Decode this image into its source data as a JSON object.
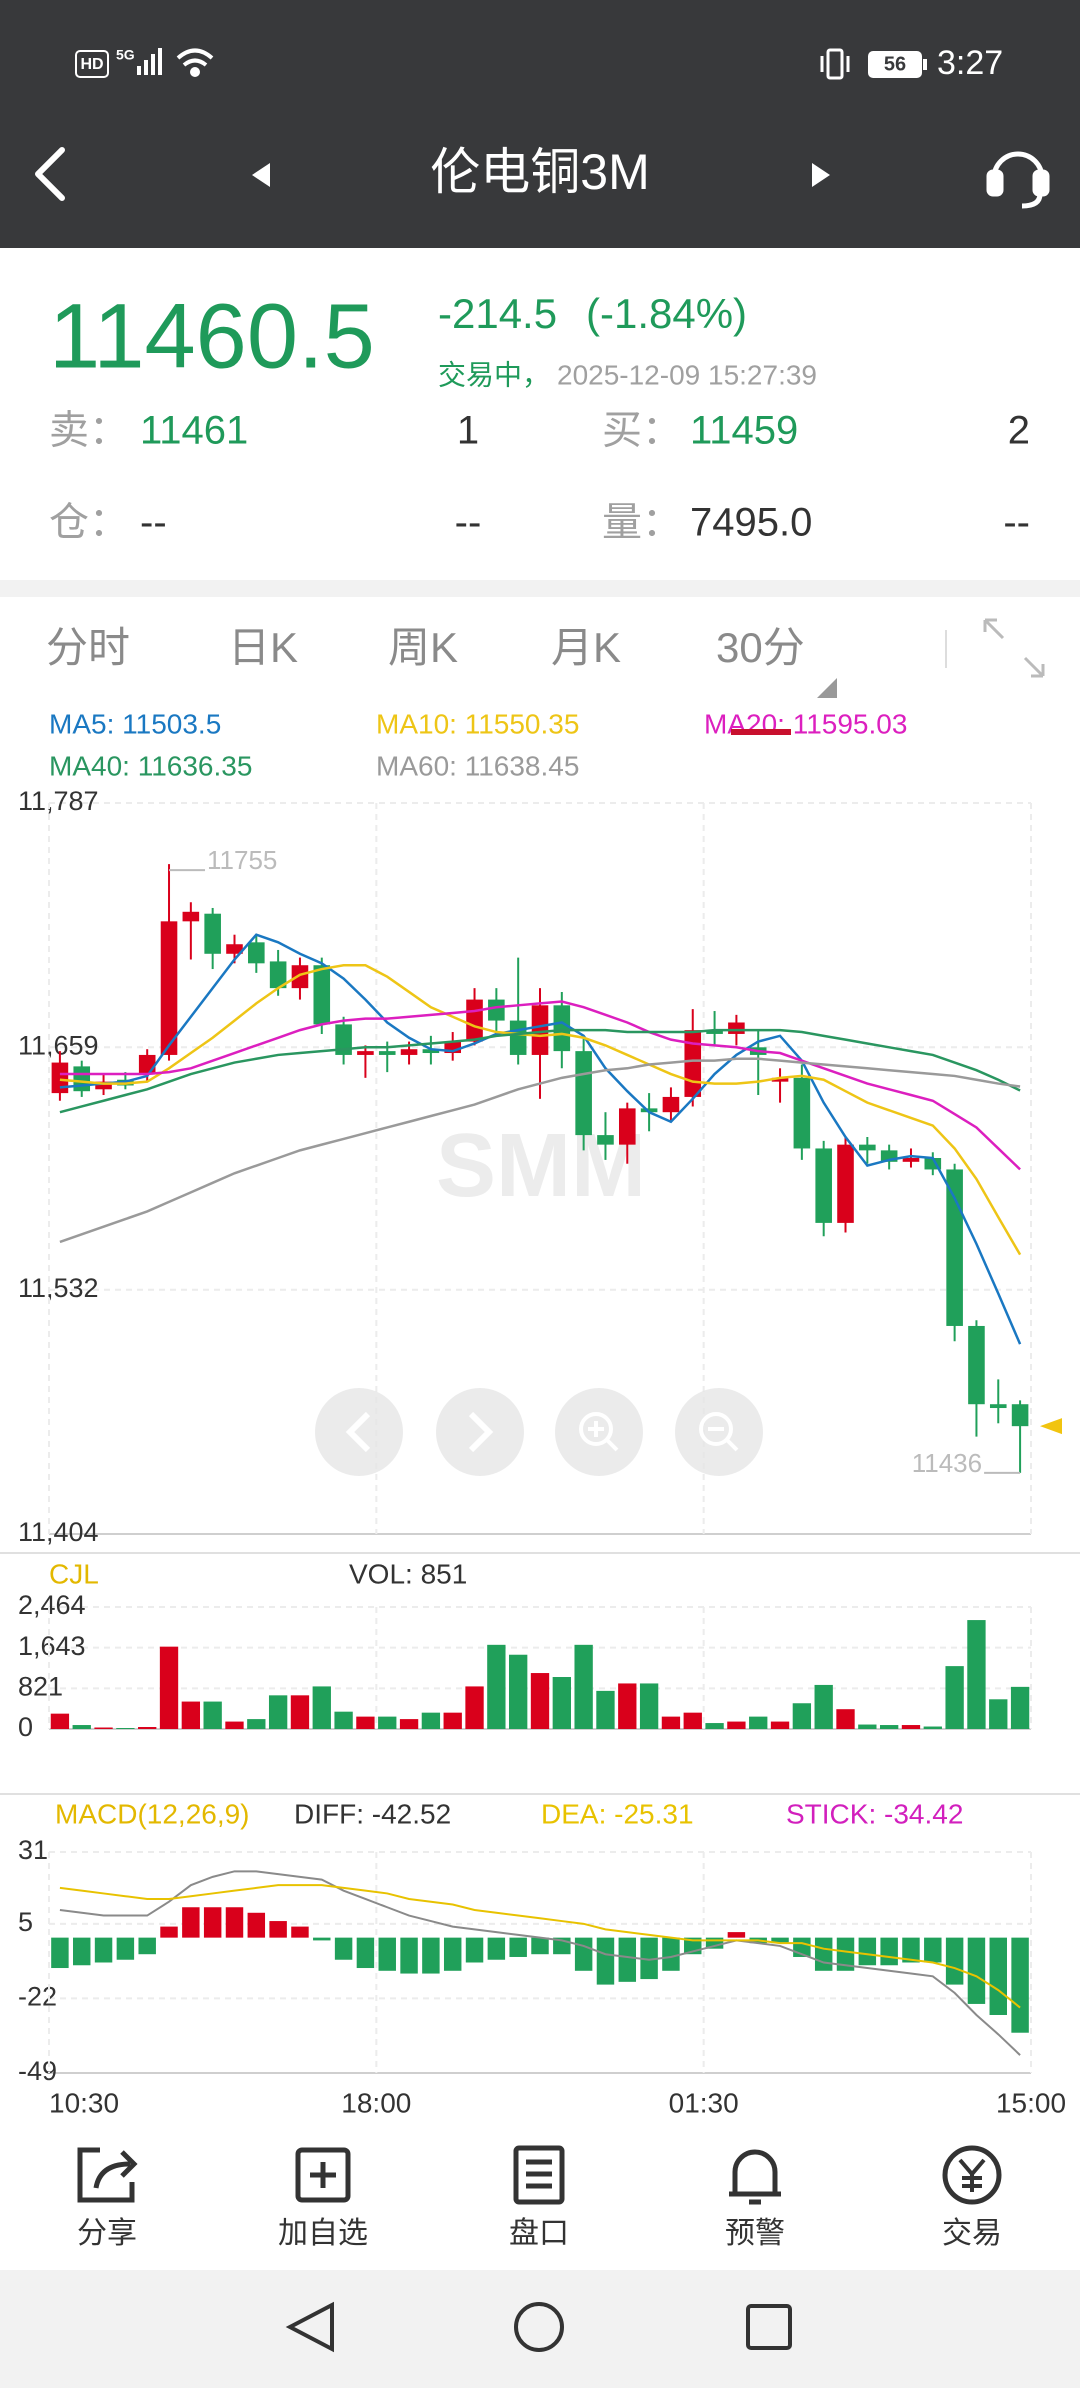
{
  "status_bar": {
    "hd": "HD",
    "network": "5G",
    "battery": "56",
    "time": "3:27"
  },
  "header": {
    "title": "伦电铜3M"
  },
  "quote": {
    "price": "11460.5",
    "change": "-214.5",
    "change_pct": "(-1.84%)",
    "status": "交易中，",
    "datetime": "2025-12-09 15:27:39",
    "sell_label": "卖：",
    "sell": "11461",
    "sell_qty": "1",
    "buy_label": "买：",
    "buy": "11459",
    "buy_qty": "2",
    "oi_label": "仓：",
    "oi": "--",
    "oi_change": "--",
    "volume_label": "量：",
    "volume": "7495.0",
    "volume_change": "--"
  },
  "tabs": [
    "分时",
    "日K",
    "周K",
    "月K",
    "30分"
  ],
  "active_tab": 4,
  "watermark": "SMM",
  "toolbar": [
    "分享",
    "加自选",
    "盘口",
    "预警",
    "交易"
  ],
  "chart_data": [
    {
      "type": "candlestick",
      "up_color": "#d9001b",
      "down_color": "#20a05a",
      "ylim": [
        11404,
        11787
      ],
      "yticks": [
        {
          "value": 11404,
          "label": "11,404"
        },
        {
          "value": 11532,
          "label": "11,532"
        },
        {
          "value": 11659,
          "label": "11,659"
        },
        {
          "value": 11787,
          "label": "11,787"
        }
      ],
      "grid": true,
      "max_label": 11755,
      "min_label": 11436,
      "open": [
        11635,
        11649,
        11637,
        11642,
        11645,
        11655,
        11725,
        11729,
        11708,
        11714,
        11704,
        11690,
        11702,
        11671,
        11655,
        11657,
        11655,
        11658,
        11656,
        11662,
        11684,
        11673,
        11655,
        11681,
        11657,
        11613,
        11608,
        11627,
        11625,
        11633,
        11668,
        11666,
        11659,
        11641,
        11643,
        11606,
        11567,
        11608,
        11605,
        11599,
        11601,
        11595,
        11513,
        11472,
        11472
      ],
      "high": [
        11657,
        11652,
        11645,
        11646,
        11658,
        11755,
        11735,
        11732,
        11718,
        11718,
        11710,
        11706,
        11706,
        11675,
        11660,
        11662,
        11662,
        11665,
        11667,
        11690,
        11690,
        11706,
        11690,
        11688,
        11665,
        11625,
        11630,
        11635,
        11638,
        11679,
        11678,
        11676,
        11668,
        11648,
        11650,
        11610,
        11612,
        11612,
        11608,
        11606,
        11604,
        11598,
        11516,
        11485,
        11474
      ],
      "low": [
        11631,
        11633,
        11634,
        11637,
        11641,
        11652,
        11705,
        11700,
        11703,
        11698,
        11686,
        11684,
        11666,
        11650,
        11643,
        11646,
        11650,
        11650,
        11652,
        11660,
        11665,
        11650,
        11632,
        11648,
        11605,
        11600,
        11598,
        11615,
        11620,
        11628,
        11660,
        11660,
        11634,
        11630,
        11600,
        11560,
        11562,
        11598,
        11595,
        11596,
        11592,
        11505,
        11455,
        11462,
        11436
      ],
      "close": [
        11651,
        11636,
        11641,
        11639,
        11655,
        11725,
        11730,
        11708,
        11713,
        11703,
        11690,
        11702,
        11671,
        11655,
        11657,
        11655,
        11658,
        11656,
        11662,
        11684,
        11673,
        11655,
        11681,
        11657,
        11613,
        11608,
        11627,
        11625,
        11633,
        11668,
        11666,
        11672,
        11655,
        11643,
        11606,
        11567,
        11608,
        11605,
        11599,
        11601,
        11595,
        11513,
        11472,
        11470,
        11460.5
      ],
      "series": [
        {
          "name": "MA5: 11503.5",
          "color": "#1a78c2",
          "values": [
            11638,
            11639,
            11640,
            11641,
            11644,
            11660,
            11675,
            11690,
            11705,
            11718,
            11714,
            11708,
            11703,
            11695,
            11684,
            11672,
            11664,
            11658,
            11657,
            11661,
            11666,
            11668,
            11670,
            11672,
            11665,
            11648,
            11636,
            11625,
            11620,
            11632,
            11645,
            11655,
            11662,
            11665,
            11652,
            11630,
            11612,
            11597,
            11600,
            11602,
            11601,
            11580,
            11556,
            11530,
            11503.5
          ]
        },
        {
          "name": "MA10: 11550.35",
          "color": "#eec516",
          "values": [
            11642,
            11641,
            11640,
            11640,
            11641,
            11648,
            11656,
            11664,
            11673,
            11682,
            11690,
            11697,
            11700,
            11702,
            11702,
            11696,
            11688,
            11680,
            11675,
            11670,
            11667,
            11666,
            11665,
            11666,
            11664,
            11660,
            11655,
            11650,
            11645,
            11641,
            11640,
            11640,
            11641,
            11643,
            11644,
            11642,
            11636,
            11630,
            11626,
            11622,
            11618,
            11606,
            11590,
            11570,
            11550.35
          ]
        },
        {
          "name": "MA20: 11595.03",
          "color": "#dc1fbf",
          "values": [
            11645,
            11645,
            11645,
            11645,
            11645,
            11646,
            11648,
            11652,
            11656,
            11660,
            11664,
            11668,
            11671,
            11673,
            11674,
            11674,
            11675,
            11676,
            11677,
            11678,
            11680,
            11681,
            11682,
            11683,
            11680,
            11676,
            11672,
            11667,
            11663,
            11661,
            11660,
            11659,
            11657,
            11656,
            11652,
            11648,
            11644,
            11640,
            11637,
            11634,
            11631,
            11624,
            11617,
            11606,
            11595.03
          ]
        },
        {
          "name": "MA40: 11636.35",
          "color": "#2a9660",
          "values": [
            11625,
            11628,
            11631,
            11634,
            11637,
            11641,
            11645,
            11648,
            11651,
            11653,
            11655,
            11656,
            11657,
            11658,
            11659,
            11659,
            11660,
            11661,
            11662,
            11663,
            11665,
            11666,
            11667,
            11668,
            11668,
            11668,
            11667,
            11667,
            11667,
            11667,
            11668,
            11668,
            11668,
            11668,
            11667,
            11665,
            11663,
            11661,
            11659,
            11657,
            11655,
            11651,
            11647,
            11642,
            11636.35
          ]
        },
        {
          "name": "MA60: 11638.45",
          "color": "#9a9a9a",
          "values": [
            11557,
            11561,
            11565,
            11569,
            11573,
            11578,
            11583,
            11588,
            11593,
            11597,
            11601,
            11605,
            11608,
            11611,
            11614,
            11617,
            11620,
            11623,
            11626,
            11629,
            11633,
            11637,
            11640,
            11643,
            11645,
            11647,
            11648,
            11650,
            11651,
            11652,
            11652,
            11653,
            11653,
            11652,
            11651,
            11650,
            11649,
            11648,
            11647,
            11646,
            11645,
            11644,
            11642,
            11640,
            11638.45
          ]
        }
      ]
    },
    {
      "type": "bar",
      "title": "CJL",
      "title_color": "#e3b800",
      "up_color": "#d9001b",
      "down_color": "#20a05a",
      "ylim": [
        0,
        2464
      ],
      "yticks": [
        0,
        821,
        {
          "value": 1643,
          "label": "1,643"
        },
        {
          "value": 2464,
          "label": "2,464"
        }
      ],
      "series": [
        {
          "name": "VOL: 851",
          "color": "#333333",
          "values": [
            310,
            80,
            30,
            20,
            40,
            1663,
            554,
            554,
            150,
            200,
            680,
            680,
            860,
            350,
            250,
            250,
            200,
            330,
            330,
            860,
            1700,
            1500,
            1130,
            1050,
            1700,
            770,
            920,
            920,
            250,
            330,
            120,
            150,
            250,
            150,
            520,
            890,
            400,
            90,
            80,
            80,
            50,
            1270,
            2200,
            600,
            851
          ]
        }
      ]
    },
    {
      "type": "macd",
      "title": "MACD(12,26,9)",
      "title_color": "#e3b800",
      "positive_color": "#d9001b",
      "negative_color": "#20a05a",
      "ylim": [
        -49,
        31
      ],
      "yticks": [
        -49,
        -22,
        5,
        31
      ],
      "x_labels": [
        "10:30",
        "18:00",
        "01:30",
        "15:00"
      ],
      "series": [
        {
          "name": "DIFF: -42.52",
          "kind": "line",
          "color": "#8a8a8a",
          "values": [
            10,
            9,
            8,
            8,
            8,
            13,
            19,
            22,
            24,
            24,
            23,
            22,
            21,
            17,
            14,
            11,
            8,
            6,
            4,
            3,
            2,
            1,
            0,
            -1,
            -3,
            -6,
            -7,
            -8,
            -7,
            -5,
            -3,
            -1,
            -2,
            -3,
            -6,
            -9,
            -10,
            -11,
            -12,
            -13,
            -14,
            -20,
            -28,
            -35,
            -42.52
          ]
        },
        {
          "name": "DEA: -25.31",
          "kind": "line",
          "color": "#e8c200",
          "values": [
            18,
            17,
            16,
            15,
            14,
            14,
            15,
            16,
            17,
            18,
            19,
            19,
            19,
            18,
            17,
            16,
            14,
            13,
            12,
            10,
            9,
            8,
            7,
            6,
            5,
            3,
            2,
            1,
            0,
            -1,
            -1,
            -1,
            -1,
            -2,
            -2,
            -4,
            -5,
            -6,
            -7,
            -8,
            -9,
            -11,
            -14,
            -19,
            -25.31
          ]
        },
        {
          "name": "STICK: -34.42",
          "kind": "bar",
          "color": "#d21fbd",
          "values": [
            -11,
            -10,
            -9,
            -8,
            -6,
            4,
            11,
            11,
            11,
            9,
            6,
            4,
            -1,
            -8,
            -11,
            -12,
            -13,
            -13,
            -12,
            -9,
            -8,
            -7,
            -6,
            -6,
            -12,
            -17,
            -16,
            -15,
            -12,
            -6,
            -4,
            2,
            -2,
            -2,
            -7,
            -12,
            -12,
            -10,
            -10,
            -9,
            -9,
            -17,
            -24,
            -28,
            -34.42
          ]
        }
      ]
    }
  ]
}
